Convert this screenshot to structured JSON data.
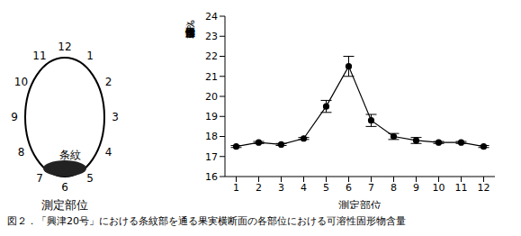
{
  "chart_data": {
    "type": "line",
    "x": [
      1,
      2,
      3,
      4,
      5,
      6,
      7,
      8,
      9,
      10,
      11,
      12
    ],
    "values": [
      17.5,
      17.7,
      17.6,
      17.9,
      19.5,
      21.5,
      18.8,
      18.0,
      17.8,
      17.7,
      17.7,
      17.5
    ],
    "errors": [
      0.05,
      0.05,
      0.05,
      0.05,
      0.3,
      0.5,
      0.3,
      0.15,
      0.15,
      0.05,
      0.05,
      0.05
    ],
    "xlim": [
      0.5,
      12.5
    ],
    "xticks": [
      1,
      2,
      3,
      4,
      5,
      6,
      7,
      8,
      9,
      10,
      11,
      12
    ],
    "ylim": [
      16,
      24
    ],
    "yticks": [
      16,
      17,
      18,
      19,
      20,
      21,
      22,
      23,
      24
    ],
    "xlabel": "測定部位",
    "ylabel": "可溶性固形物含量（%）",
    "color": "#000000",
    "marker": "circle",
    "caption": "図２．「興津20号」における条紋部を通る果実横断面の各部位における可溶性固形物含量"
  },
  "diagram": {
    "positions": [
      "1",
      "2",
      "3",
      "4",
      "5",
      "6",
      "7",
      "8",
      "9",
      "10",
      "11",
      "12"
    ],
    "stripe_label": "条紋",
    "label": "測定部位"
  }
}
